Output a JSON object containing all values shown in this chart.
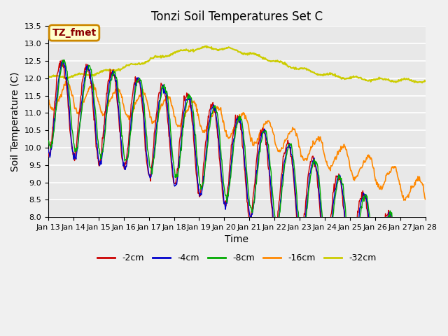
{
  "title": "Tonzi Soil Temperatures Set C",
  "xlabel": "Time",
  "ylabel": "Soil Temperature (C)",
  "ylim": [
    8.0,
    13.5
  ],
  "yticks": [
    8.0,
    8.5,
    9.0,
    9.5,
    10.0,
    10.5,
    11.0,
    11.5,
    12.0,
    12.5,
    13.0,
    13.5
  ],
  "colors": {
    "-2cm": "#cc0000",
    "-4cm": "#0000cc",
    "-8cm": "#00aa00",
    "-16cm": "#ff8800",
    "-32cm": "#cccc00"
  },
  "legend_labels": [
    "-2cm",
    "-4cm",
    "-8cm",
    "-16cm",
    "-32cm"
  ],
  "annotation_label": "TZ_fmet",
  "annotation_bg": "#ffffcc",
  "annotation_border": "#cc8800",
  "plot_bg_color": "#e8e8e8",
  "fig_bg_color": "#f0f0f0",
  "title_fontsize": 12,
  "axis_label_fontsize": 10,
  "tick_fontsize": 8
}
